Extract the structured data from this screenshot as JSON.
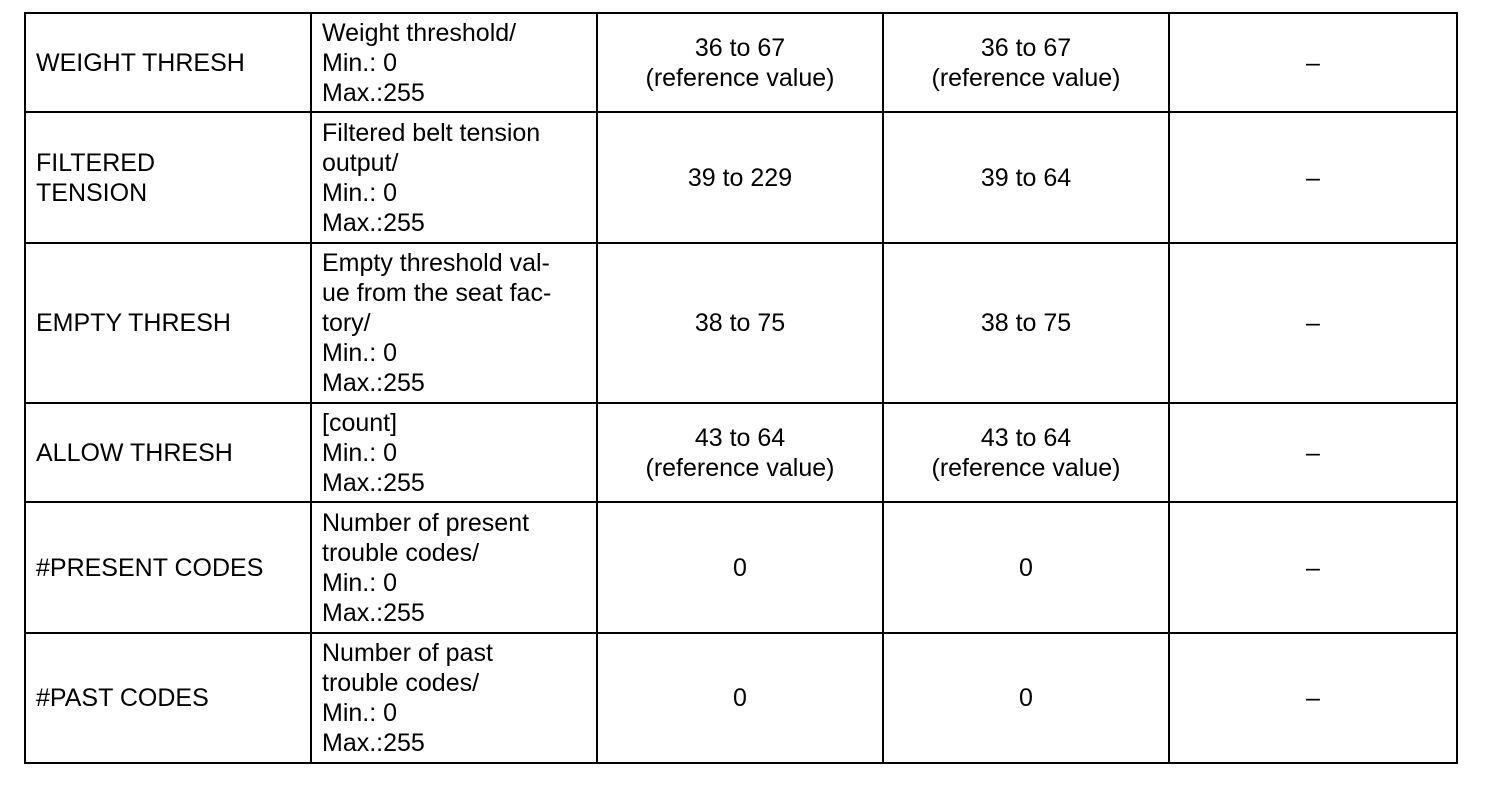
{
  "rows": [
    {
      "item": "WEIGHT THRESH",
      "description": "Weight threshold/\nMin.: 0\nMax.:255",
      "value_a": "36 to 67\n(reference value)",
      "value_b": "36 to 67\n(reference value)",
      "note": "–"
    },
    {
      "item": "FILTERED TENSION",
      "description": "Filtered belt tension\noutput/\nMin.: 0\nMax.:255",
      "value_a": "39 to 229",
      "value_b": "39 to 64",
      "note": "–"
    },
    {
      "item": "EMPTY THRESH",
      "description": "Empty threshold val-\nue from the seat fac-\ntory/\nMin.: 0\nMax.:255",
      "value_a": "38 to 75",
      "value_b": "38 to 75",
      "note": "–"
    },
    {
      "item": "ALLOW THRESH",
      "description": "[count]\nMin.: 0\nMax.:255",
      "value_a": "43 to 64\n(reference value)",
      "value_b": "43 to 64\n(reference value)",
      "note": "–"
    },
    {
      "item": "#PRESENT CODES",
      "description": "Number of present\ntrouble codes/\nMin.: 0\nMax.:255",
      "value_a": "0",
      "value_b": "0",
      "note": "–"
    },
    {
      "item": "#PAST CODES",
      "description": "Number of past\ntrouble codes/\nMin.: 0\nMax.:255",
      "value_a": "0",
      "value_b": "0",
      "note": "–"
    }
  ]
}
